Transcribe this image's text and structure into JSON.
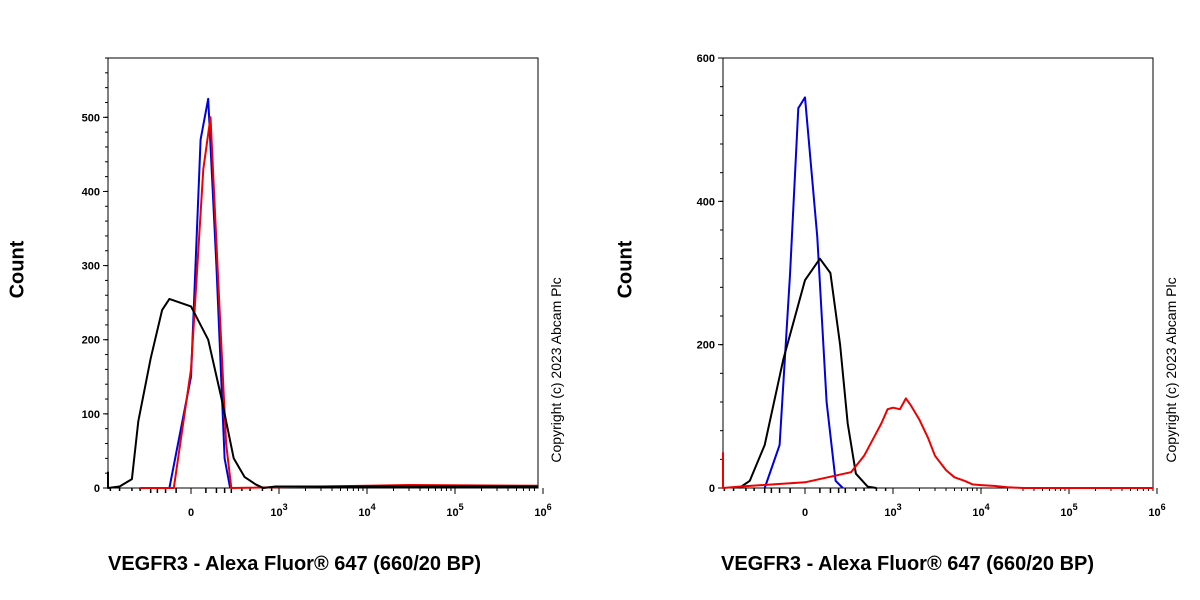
{
  "chart_data": [
    {
      "type": "line",
      "title": "",
      "xlabel": "VEGFR3 - Alexa Fluor® 647 (660/20 BP)",
      "ylabel": "Count",
      "ylim": [
        0,
        580
      ],
      "yticks": [
        0,
        100,
        200,
        300,
        400,
        500
      ],
      "xscale": "biexponential",
      "xticks": [
        {
          "value": 0,
          "label": "0"
        },
        {
          "value": 1000,
          "base": "10",
          "exp": "3"
        },
        {
          "value": 10000,
          "base": "10",
          "exp": "4"
        },
        {
          "value": 100000,
          "base": "10",
          "exp": "5"
        },
        {
          "value": 1000000,
          "base": "10",
          "exp": "6"
        }
      ],
      "annotation": "Copyright (c) 2023 Abcam Plc",
      "series": [
        {
          "color": "#0000dd",
          "x": [
            -80,
            0,
            30,
            60,
            100,
            150,
            190
          ],
          "y": [
            0,
            150,
            470,
            525,
            300,
            40,
            0
          ]
        },
        {
          "color": "#ee0000",
          "x": [
            -300,
            -60,
            0,
            40,
            70,
            110,
            160,
            200,
            30000,
            1000000
          ],
          "y": [
            0,
            0,
            160,
            430,
            500,
            280,
            60,
            0,
            4,
            3
          ]
        },
        {
          "color": "#000000",
          "x": [
            -1500,
            -1350,
            -600,
            -400,
            -320,
            -200,
            -120,
            -80,
            0,
            60,
            130,
            220,
            330,
            480,
            620,
            900,
            1000000
          ],
          "y": [
            22,
            0,
            2,
            12,
            90,
            175,
            240,
            255,
            245,
            200,
            120,
            40,
            15,
            5,
            0,
            2,
            2
          ]
        }
      ]
    },
    {
      "type": "line",
      "title": "",
      "xlabel": "VEGFR3 - Alexa Fluor® 647 (660/20 BP)",
      "ylabel": "Count",
      "ylim": [
        0,
        600
      ],
      "yticks": [
        0,
        200,
        400,
        600
      ],
      "xscale": "biexponential",
      "xticks": [
        {
          "value": 0,
          "label": "0"
        },
        {
          "value": 1000,
          "base": "10",
          "exp": "3"
        },
        {
          "value": 10000,
          "base": "10",
          "exp": "4"
        },
        {
          "value": 100000,
          "base": "10",
          "exp": "5"
        },
        {
          "value": 1000000,
          "base": "10",
          "exp": "6"
        }
      ],
      "annotation": "Copyright (c) 2023 Abcam Plc",
      "series": [
        {
          "color": "#0000dd",
          "x": [
            -200,
            -100,
            -50,
            -20,
            0,
            40,
            80,
            130,
            180
          ],
          "y": [
            0,
            60,
            300,
            530,
            545,
            350,
            120,
            10,
            0
          ]
        },
        {
          "color": "#000000",
          "x": [
            -500,
            -350,
            -200,
            -80,
            0,
            50,
            100,
            160,
            220,
            300,
            450,
            600
          ],
          "y": [
            0,
            10,
            60,
            180,
            290,
            320,
            300,
            200,
            90,
            20,
            2,
            0
          ]
        },
        {
          "color": "#ee0000",
          "x": [
            -1500,
            -1400,
            -1000,
            -500,
            0,
            250,
            400,
            550,
            700,
            850,
            1000,
            1200,
            1400,
            1600,
            2000,
            2500,
            3000,
            4000,
            5000,
            6500,
            8000,
            10000,
            14000,
            20000,
            30000,
            100000,
            1000000
          ],
          "y": [
            50,
            0,
            0,
            2,
            8,
            22,
            45,
            70,
            90,
            110,
            112,
            110,
            125,
            115,
            95,
            70,
            45,
            25,
            15,
            10,
            5,
            4,
            3,
            1,
            0,
            0,
            0
          ]
        }
      ]
    }
  ]
}
